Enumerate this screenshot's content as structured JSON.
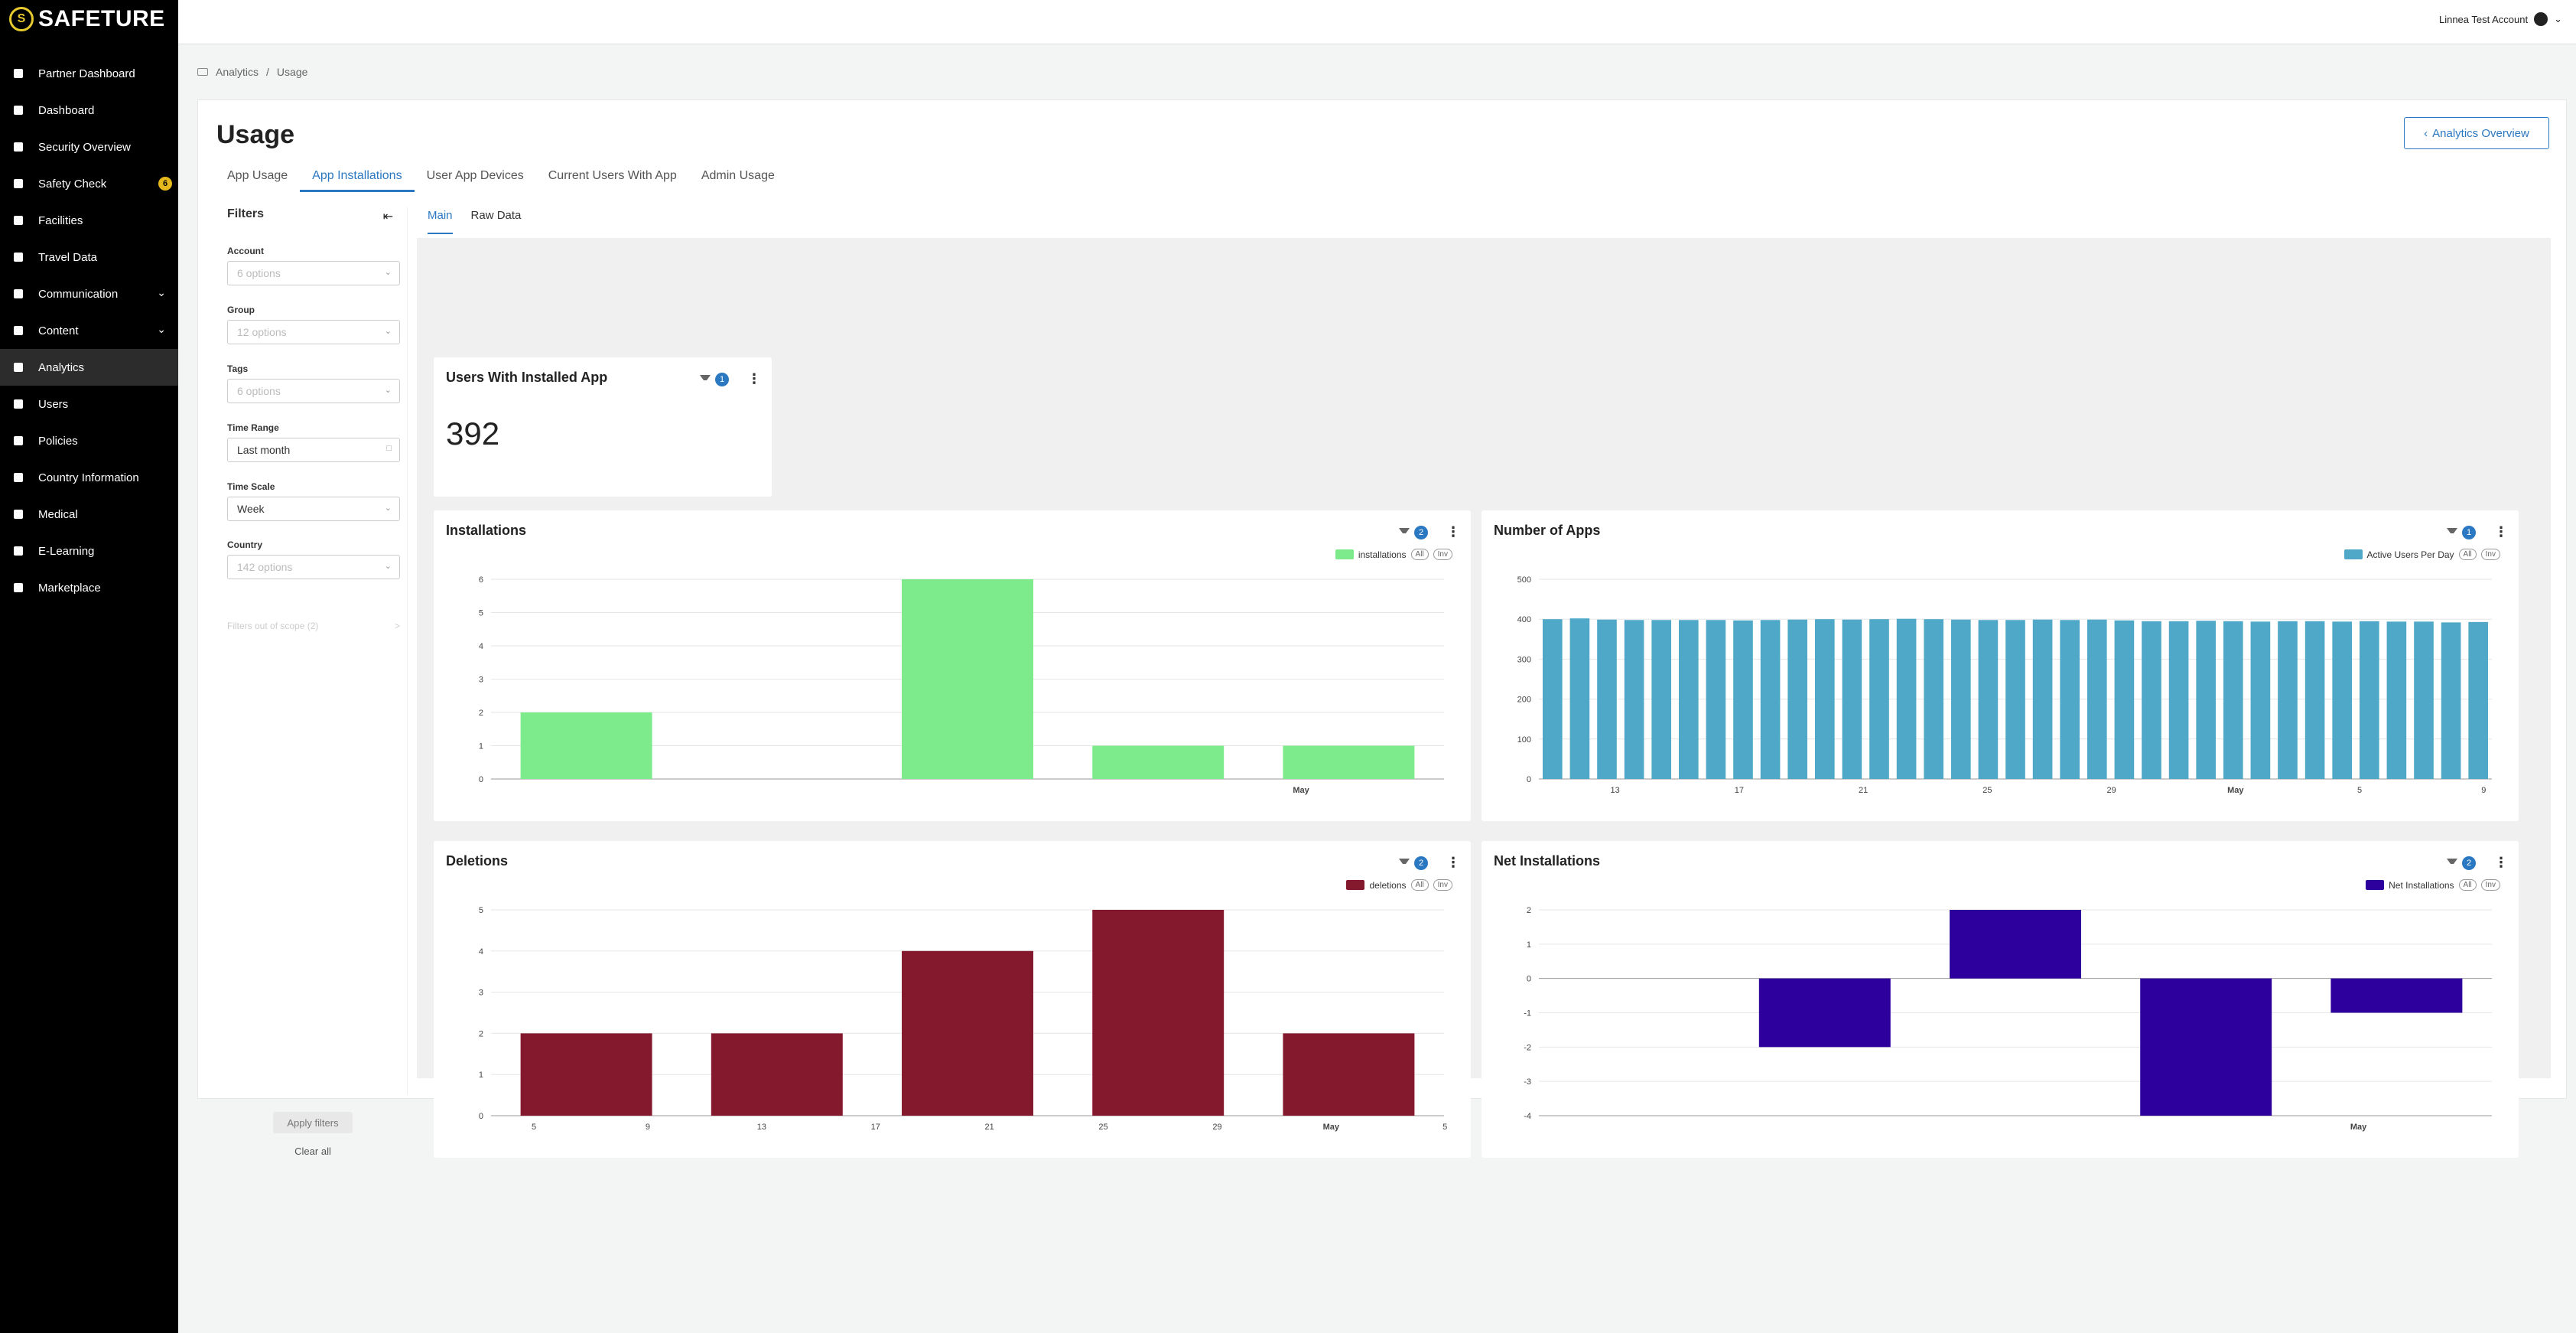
{
  "brand": {
    "name": "SAFETURE",
    "mark": "S"
  },
  "sidebar": {
    "items": [
      {
        "label": "Partner Dashboard",
        "icon": "handshake-icon"
      },
      {
        "label": "Dashboard",
        "icon": "gauge-icon"
      },
      {
        "label": "Security Overview",
        "icon": "globe-icon"
      },
      {
        "label": "Safety Check",
        "icon": "checkbox-icon",
        "badge": "6"
      },
      {
        "label": "Facilities",
        "icon": "building-icon"
      },
      {
        "label": "Travel Data",
        "icon": "plane-icon"
      },
      {
        "label": "Communication",
        "icon": "chat-icon",
        "expandable": true
      },
      {
        "label": "Content",
        "icon": "pencil-icon",
        "expandable": true
      },
      {
        "label": "Analytics",
        "icon": "chart-icon",
        "active": true
      },
      {
        "label": "Users",
        "icon": "user-icon"
      },
      {
        "label": "Policies",
        "icon": "document-icon"
      },
      {
        "label": "Country Information",
        "icon": "flag-icon"
      },
      {
        "label": "Medical",
        "icon": "medkit-icon"
      },
      {
        "label": "E-Learning",
        "icon": "graduation-icon"
      },
      {
        "label": "Marketplace",
        "icon": "store-icon"
      }
    ]
  },
  "topbar": {
    "account": "Linnea Test Account"
  },
  "breadcrumb": {
    "root": "Analytics",
    "sep": "/",
    "current": "Usage"
  },
  "page": {
    "title": "Usage",
    "back_button": "Analytics Overview"
  },
  "tabs": [
    "App Usage",
    "App Installations",
    "User App Devices",
    "Current Users With App",
    "Admin Usage"
  ],
  "active_tab": "App Installations",
  "subtabs": [
    "Main",
    "Raw Data"
  ],
  "filters": {
    "title": "Filters",
    "fields": [
      {
        "label": "Account",
        "value": "6 options",
        "placeholder": true
      },
      {
        "label": "Group",
        "value": "12 options",
        "placeholder": true
      },
      {
        "label": "Tags",
        "value": "6 options",
        "placeholder": true
      },
      {
        "label": "Time Range",
        "value": "Last month",
        "placeholder": false,
        "icon": "calendar-icon"
      },
      {
        "label": "Time Scale",
        "value": "Week",
        "placeholder": false
      },
      {
        "label": "Country",
        "value": "142 options",
        "placeholder": true
      }
    ],
    "out_of_scope": "Filters out of scope (2)",
    "out_of_scope_chevron": ">",
    "apply": "Apply filters",
    "clear": "Clear all"
  },
  "kpi": {
    "title": "Users With Installed App",
    "value": "392",
    "filter_count": "1"
  },
  "legend_pills": {
    "all": "All",
    "inv": "Inv"
  },
  "chart_data": [
    {
      "type": "bar",
      "title": "Installations",
      "filter_count": "2",
      "series": [
        {
          "name": "installations",
          "color": "#7deb8b",
          "values": [
            2,
            6,
            1,
            1
          ]
        }
      ],
      "ylim": [
        0,
        6
      ],
      "yticks": [
        0,
        1,
        2,
        3,
        4,
        5,
        6
      ],
      "xticks": [
        "May"
      ]
    },
    {
      "type": "bar",
      "title": "Number of Apps",
      "filter_count": "1",
      "series": [
        {
          "name": "Active Users Per Day",
          "color": "#4fa8c8",
          "values": [
            400,
            402,
            399,
            398,
            398,
            398,
            398,
            397,
            398,
            399,
            400,
            399,
            400,
            401,
            400,
            399,
            398,
            398,
            399,
            398,
            399,
            397,
            395,
            395,
            396,
            395,
            394,
            395,
            395,
            394,
            395,
            394,
            394,
            392,
            393
          ]
        }
      ],
      "ylim": [
        0,
        500
      ],
      "yticks": [
        0,
        100,
        200,
        300,
        400,
        500
      ],
      "xticks": [
        "13",
        "17",
        "21",
        "25",
        "29",
        "May",
        "5",
        "9"
      ]
    },
    {
      "type": "bar",
      "title": "Deletions",
      "filter_count": "2",
      "series": [
        {
          "name": "deletions",
          "color": "#84182d",
          "values": [
            2,
            2,
            4,
            5,
            2
          ]
        }
      ],
      "ylim": [
        0,
        5
      ],
      "yticks": [
        0,
        1,
        2,
        3,
        4,
        5
      ],
      "xticks": [
        "5",
        "9",
        "13",
        "17",
        "21",
        "25",
        "29",
        "May",
        "5"
      ]
    },
    {
      "type": "bar",
      "title": "Net Installations",
      "filter_count": "2",
      "series": [
        {
          "name": "Net Installations",
          "color": "#2d009e",
          "values": [
            -2,
            2,
            -4,
            -1
          ]
        }
      ],
      "ylim": [
        -4,
        2
      ],
      "yticks": [
        -4,
        -3,
        -2,
        -1,
        0,
        1,
        2
      ],
      "xticks": [
        "May"
      ]
    }
  ]
}
